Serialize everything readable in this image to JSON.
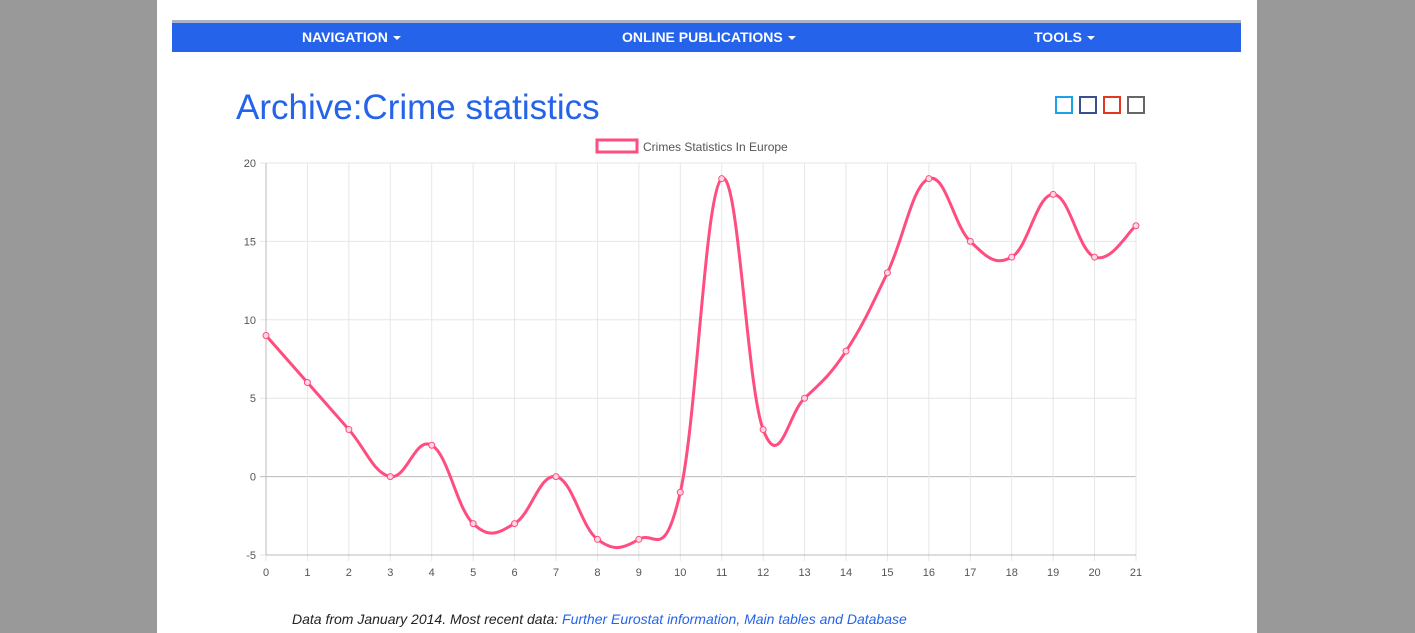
{
  "nav": {
    "items": [
      {
        "label": "NAVIGATION"
      },
      {
        "label": "ONLINE PUBLICATIONS"
      },
      {
        "label": "TOOLS"
      }
    ]
  },
  "page": {
    "title": "Archive:Crime statistics"
  },
  "theme_swatches": [
    "#1aa3e8",
    "#3b4f8c",
    "#e03a1e",
    "#666666"
  ],
  "colors": {
    "brand": "#2563eb",
    "series": "#ff4d7f"
  },
  "chart_data": {
    "type": "line",
    "x": [
      0,
      1,
      2,
      3,
      4,
      5,
      6,
      7,
      8,
      9,
      10,
      11,
      12,
      13,
      14,
      15,
      16,
      17,
      18,
      19,
      20,
      21
    ],
    "series": [
      {
        "name": "Crimes Statistics In Europe",
        "values": [
          9,
          6,
          3,
          0,
          2,
          -3,
          -3,
          0,
          -4,
          -4,
          -1,
          19,
          3,
          5,
          8,
          13,
          19,
          15,
          14,
          18,
          14,
          16
        ]
      }
    ],
    "xlim": [
      0,
      21
    ],
    "ylim": [
      -5,
      20
    ],
    "yticks": [
      -5,
      0,
      5,
      10,
      15,
      20
    ],
    "grid": true,
    "legend": "top-center",
    "smooth": true
  },
  "footer": {
    "text": "Data from January 2014. Most recent data: ",
    "link": "Further Eurostat information, Main tables and Database"
  }
}
